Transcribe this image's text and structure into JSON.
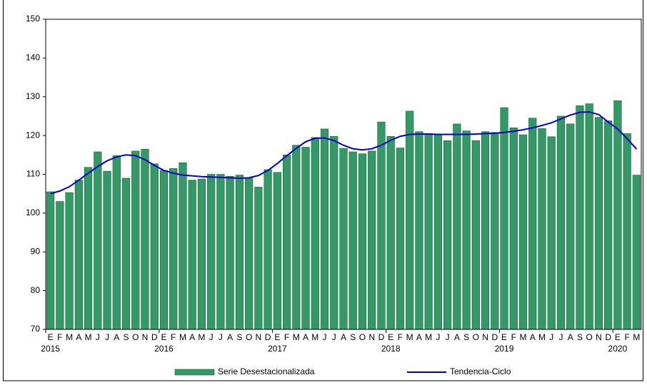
{
  "chart_data": {
    "type": "bar",
    "categories": [
      "E",
      "F",
      "M",
      "A",
      "M",
      "J",
      "J",
      "A",
      "S",
      "O",
      "N",
      "D",
      "E",
      "F",
      "M",
      "A",
      "M",
      "J",
      "J",
      "A",
      "S",
      "O",
      "N",
      "D",
      "E",
      "F",
      "M",
      "A",
      "M",
      "J",
      "J",
      "A",
      "S",
      "O",
      "N",
      "D",
      "E",
      "F",
      "M",
      "A",
      "M",
      "J",
      "J",
      "A",
      "S",
      "O",
      "N",
      "D",
      "E",
      "F",
      "M",
      "A",
      "M",
      "J",
      "J",
      "A",
      "S",
      "O",
      "N",
      "D",
      "E",
      "F",
      "M"
    ],
    "years": [
      "2015",
      "2016",
      "2017",
      "2018",
      "2019",
      "2020"
    ],
    "series": [
      {
        "name": "Serie Desestacionalizada",
        "type": "bar",
        "color": "#339966",
        "values": [
          105.5,
          103,
          105.3,
          108.5,
          111.8,
          115.8,
          110.8,
          114.8,
          109,
          116,
          116.5,
          112.7,
          111,
          111.5,
          113,
          108.5,
          108.8,
          110,
          110,
          109.5,
          109.8,
          109,
          106.7,
          111.2,
          110.5,
          115,
          117.5,
          117,
          119.5,
          121.7,
          119.8,
          116.7,
          115.8,
          115.3,
          116,
          123.5,
          119.8,
          116.8,
          126.3,
          121,
          120.5,
          120.3,
          118.7,
          123,
          121.2,
          118.7,
          121,
          120.8,
          127.2,
          122,
          120.2,
          124.5,
          121.8,
          119.7,
          125,
          123,
          127.7,
          128.2,
          124.7,
          123.8,
          129,
          120.5,
          109.8
        ]
      },
      {
        "name": "Tendencia-Ciclo",
        "type": "line",
        "color": "#0000cc",
        "values": [
          105,
          105.7,
          106.8,
          108.5,
          110.3,
          112,
          113.5,
          114.5,
          115,
          114.8,
          113.8,
          112.3,
          111,
          110.3,
          109.8,
          109.6,
          109.4,
          109.3,
          109.2,
          109.1,
          109,
          109.1,
          109.7,
          111,
          112.8,
          114.8,
          116.7,
          118.4,
          119.3,
          119.4,
          118.7,
          117.5,
          116.6,
          116.3,
          116.6,
          117.5,
          118.8,
          119.8,
          120.3,
          120.4,
          120.4,
          120.3,
          120.3,
          120.3,
          120.3,
          120.4,
          120.5,
          120.6,
          120.8,
          121.1,
          121.5,
          122,
          122.6,
          123.3,
          124.3,
          125.3,
          126,
          126.1,
          125.4,
          123.5,
          121.7,
          119.2,
          116.5
        ]
      }
    ],
    "ylim": [
      70,
      150
    ],
    "yticks": [
      70,
      80,
      90,
      100,
      110,
      120,
      130,
      140,
      150
    ],
    "grid": false,
    "legend": "bottom"
  }
}
